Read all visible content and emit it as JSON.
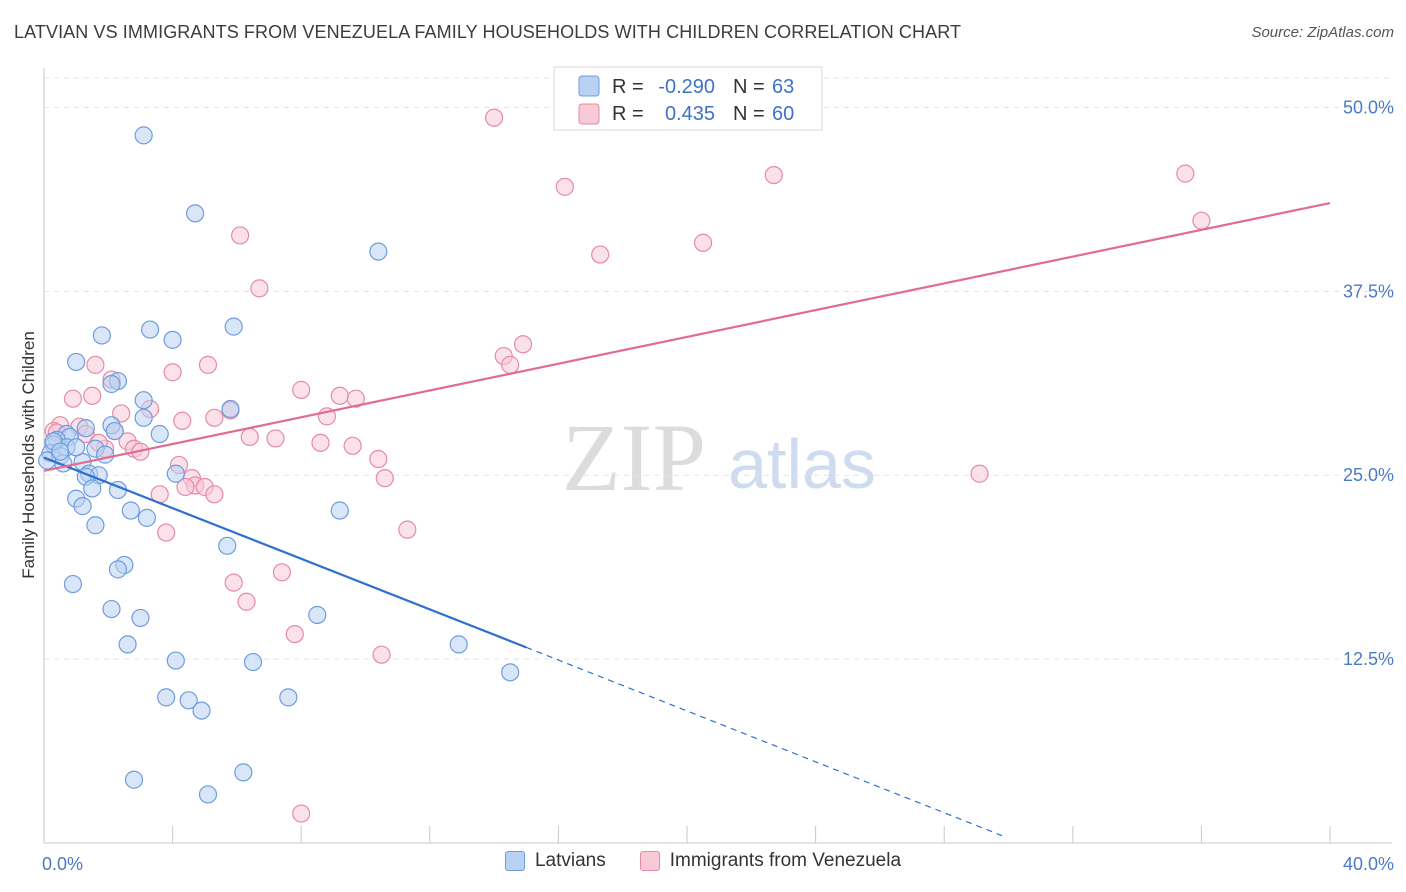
{
  "header": {
    "title": "LATVIAN VS IMMIGRANTS FROM VENEZUELA FAMILY HOUSEHOLDS WITH CHILDREN CORRELATION CHART",
    "source": "Source: ZipAtlas.com"
  },
  "watermark": {
    "zip": "ZIP",
    "atlas": "atlas"
  },
  "colors": {
    "latvians_fill": "#b9d1f3",
    "latvians_stroke": "#6d9de0",
    "latvians_line": "#2e6fd0",
    "venezuela_fill": "#f8c9d7",
    "venezuela_stroke": "#e68aa6",
    "venezuela_line": "#e06c94",
    "tick_label": "#4a7ac8",
    "grid": "#e3e3e3"
  },
  "legend": {
    "rows": [
      {
        "r_label": "R = ",
        "r_value": "-0.290",
        "n_label": "N = ",
        "n_value": "63"
      },
      {
        "r_label": "R = ",
        "r_value": "0.435",
        "n_label": "N = ",
        "n_value": "60"
      }
    ]
  },
  "chart_data": {
    "type": "scatter",
    "title": "LATVIAN VS IMMIGRANTS FROM VENEZUELA FAMILY HOUSEHOLDS WITH CHILDREN CORRELATION CHART",
    "xlabel": "",
    "ylabel": "Family Households with Children",
    "xlim": [
      0,
      40
    ],
    "ylim": [
      0,
      52
    ],
    "x_tick_labels": [
      "0.0%",
      "40.0%"
    ],
    "y_ticks": [
      12.5,
      25.0,
      37.5,
      50.0
    ],
    "y_tick_labels": [
      "12.5%",
      "25.0%",
      "37.5%",
      "50.0%"
    ],
    "grid": true,
    "legend_position": "top-center",
    "series": [
      {
        "name": "Latvians",
        "r": -0.29,
        "n": 63,
        "trend": {
          "x0": 0,
          "y0": 26.2,
          "x1": 15,
          "y1": 13.3,
          "dashed_to_x": 29.8,
          "dashed_to_y": 0.5
        },
        "points": [
          [
            3.1,
            48.1
          ],
          [
            4.7,
            42.8
          ],
          [
            10.4,
            40.2
          ],
          [
            3.3,
            34.9
          ],
          [
            5.9,
            35.1
          ],
          [
            4.0,
            34.2
          ],
          [
            1.8,
            34.5
          ],
          [
            1.0,
            32.7
          ],
          [
            2.3,
            31.4
          ],
          [
            2.1,
            31.2
          ],
          [
            3.1,
            30.1
          ],
          [
            5.8,
            29.5
          ],
          [
            3.1,
            28.9
          ],
          [
            1.3,
            28.2
          ],
          [
            2.1,
            28.4
          ],
          [
            3.6,
            27.8
          ],
          [
            2.2,
            28.0
          ],
          [
            0.7,
            27.8
          ],
          [
            0.8,
            27.6
          ],
          [
            0.4,
            27.4
          ],
          [
            0.3,
            27.1
          ],
          [
            0.7,
            26.9
          ],
          [
            1.6,
            26.8
          ],
          [
            0.2,
            26.5
          ],
          [
            0.5,
            26.3
          ],
          [
            1.9,
            26.4
          ],
          [
            0.1,
            26.0
          ],
          [
            0.6,
            25.8
          ],
          [
            1.2,
            25.9
          ],
          [
            1.4,
            25.1
          ],
          [
            1.7,
            25.0
          ],
          [
            1.3,
            24.9
          ],
          [
            4.1,
            25.1
          ],
          [
            1.5,
            24.1
          ],
          [
            2.3,
            24.0
          ],
          [
            1.0,
            23.4
          ],
          [
            1.2,
            22.9
          ],
          [
            2.7,
            22.6
          ],
          [
            3.2,
            22.1
          ],
          [
            1.6,
            21.6
          ],
          [
            9.2,
            22.6
          ],
          [
            5.7,
            20.2
          ],
          [
            2.5,
            18.9
          ],
          [
            2.3,
            18.6
          ],
          [
            0.9,
            17.6
          ],
          [
            2.1,
            15.9
          ],
          [
            3.0,
            15.3
          ],
          [
            8.5,
            15.5
          ],
          [
            2.6,
            13.5
          ],
          [
            4.1,
            12.4
          ],
          [
            6.5,
            12.3
          ],
          [
            12.9,
            13.5
          ],
          [
            14.5,
            11.6
          ],
          [
            3.8,
            9.9
          ],
          [
            4.5,
            9.7
          ],
          [
            7.6,
            9.9
          ],
          [
            4.9,
            9.0
          ],
          [
            2.8,
            4.3
          ],
          [
            6.2,
            4.8
          ],
          [
            5.1,
            3.3
          ],
          [
            0.3,
            27.3
          ],
          [
            1.0,
            26.9
          ],
          [
            0.5,
            26.6
          ]
        ]
      },
      {
        "name": "Immigrants from Venezuela",
        "r": 0.435,
        "n": 60,
        "trend": {
          "x0": 0,
          "y0": 25.3,
          "x1": 40,
          "y1": 43.5
        },
        "points": [
          [
            14.0,
            49.3
          ],
          [
            16.2,
            44.6
          ],
          [
            22.7,
            45.4
          ],
          [
            35.5,
            45.5
          ],
          [
            36.0,
            42.3
          ],
          [
            6.1,
            41.3
          ],
          [
            20.5,
            40.8
          ],
          [
            17.3,
            40.0
          ],
          [
            6.7,
            37.7
          ],
          [
            14.9,
            33.9
          ],
          [
            14.3,
            33.1
          ],
          [
            14.5,
            32.5
          ],
          [
            1.6,
            32.5
          ],
          [
            5.1,
            32.5
          ],
          [
            4.0,
            32.0
          ],
          [
            2.1,
            31.5
          ],
          [
            1.5,
            30.4
          ],
          [
            0.9,
            30.2
          ],
          [
            8.0,
            30.8
          ],
          [
            9.2,
            30.4
          ],
          [
            9.7,
            30.2
          ],
          [
            3.3,
            29.5
          ],
          [
            5.8,
            29.4
          ],
          [
            2.4,
            29.2
          ],
          [
            8.8,
            29.0
          ],
          [
            5.3,
            28.9
          ],
          [
            4.3,
            28.7
          ],
          [
            0.5,
            28.4
          ],
          [
            1.1,
            28.3
          ],
          [
            0.3,
            28.0
          ],
          [
            1.3,
            27.8
          ],
          [
            2.2,
            28.0
          ],
          [
            6.4,
            27.6
          ],
          [
            7.2,
            27.5
          ],
          [
            8.6,
            27.2
          ],
          [
            9.6,
            27.0
          ],
          [
            2.6,
            27.3
          ],
          [
            1.9,
            26.8
          ],
          [
            2.8,
            26.8
          ],
          [
            3.0,
            26.6
          ],
          [
            10.4,
            26.1
          ],
          [
            4.2,
            25.7
          ],
          [
            4.6,
            24.8
          ],
          [
            10.6,
            24.8
          ],
          [
            4.7,
            24.3
          ],
          [
            5.0,
            24.2
          ],
          [
            4.4,
            24.2
          ],
          [
            3.6,
            23.7
          ],
          [
            5.3,
            23.7
          ],
          [
            29.1,
            25.1
          ],
          [
            11.3,
            21.3
          ],
          [
            3.8,
            21.1
          ],
          [
            7.4,
            18.4
          ],
          [
            5.9,
            17.7
          ],
          [
            6.3,
            16.4
          ],
          [
            7.8,
            14.2
          ],
          [
            10.5,
            12.8
          ],
          [
            8.0,
            2.0
          ],
          [
            0.4,
            27.9
          ],
          [
            1.7,
            27.2
          ]
        ]
      }
    ]
  },
  "bottom_legend": {
    "items": [
      {
        "label": "Latvians"
      },
      {
        "label": "Immigrants from Venezuela"
      }
    ]
  }
}
